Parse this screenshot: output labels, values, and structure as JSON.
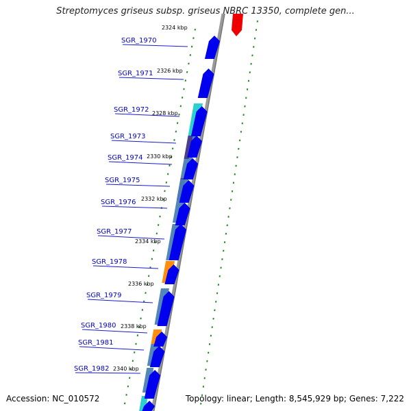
{
  "title": "Streptomyces griseus subsp. griseus NBRC 13350, complete gen...",
  "footer": {
    "accession": "Accession: NC_010572",
    "summary": "Topology: linear; Length: 8,545,929 bp; Genes: 7,222"
  },
  "colors": {
    "gene_arrow": "#0000ee",
    "highlight_arrow": "#ee0000",
    "axis": "#888888",
    "tick": "#2a8a2a",
    "label": "#0000cc",
    "domain_cyan": "#22cccc",
    "domain_steel": "#4a7fb5",
    "domain_orange": "#ff8800",
    "domain_purple": "#4a3a8a"
  },
  "kbp_labels": [
    "2324 kbp",
    "2326 kbp",
    "2328 kbp",
    "2330 kbp",
    "2332 kbp",
    "2334 kbp",
    "2336 kbp",
    "2338 kbp",
    "2340 kbp"
  ],
  "genes": [
    {
      "tag": "SGR_1970"
    },
    {
      "tag": "SGR_1971"
    },
    {
      "tag": "SGR_1972"
    },
    {
      "tag": "SGR_1973"
    },
    {
      "tag": "SGR_1974"
    },
    {
      "tag": "SGR_1975"
    },
    {
      "tag": "SGR_1976"
    },
    {
      "tag": "SGR_1977"
    },
    {
      "tag": "SGR_1978"
    },
    {
      "tag": "SGR_1979"
    },
    {
      "tag": "SGR_1980"
    },
    {
      "tag": "SGR_1981"
    },
    {
      "tag": "SGR_1982"
    }
  ]
}
